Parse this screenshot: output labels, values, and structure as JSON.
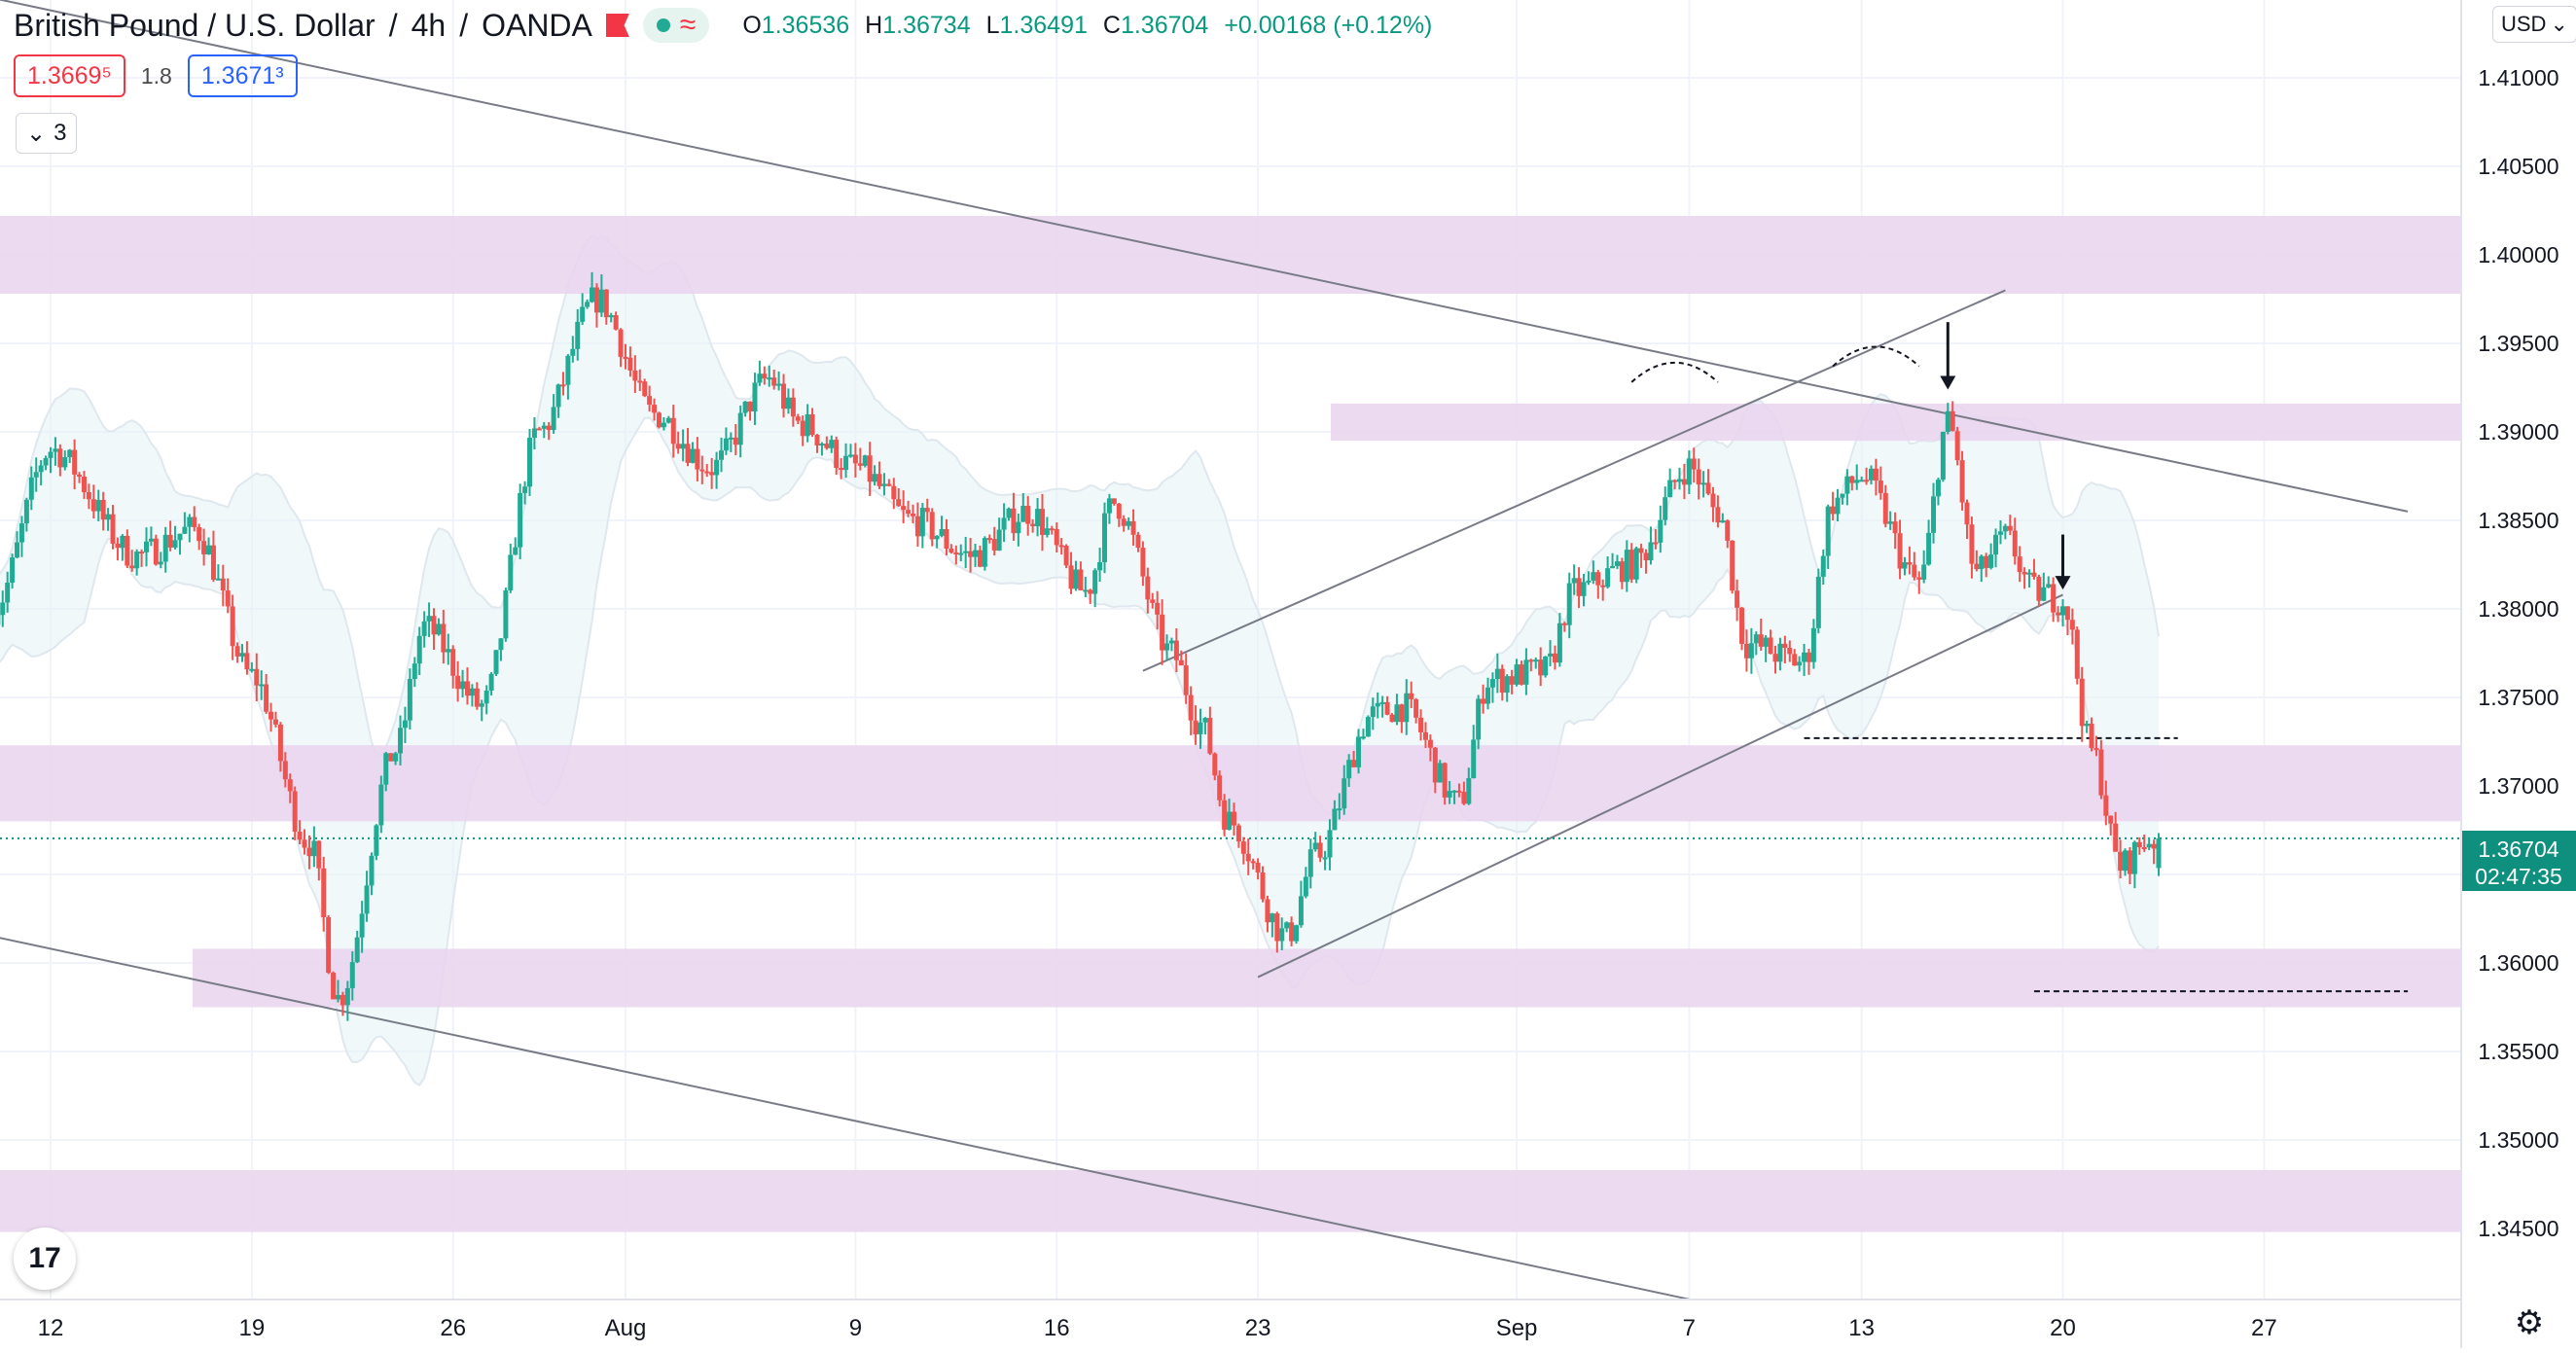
{
  "header": {
    "symbol": "British Pound / U.S. Dollar",
    "interval": "4h",
    "broker": "OANDA",
    "wave_icon": "≈",
    "open_label": "O",
    "open": "1.36536",
    "high_label": "H",
    "high": "1.36734",
    "low_label": "L",
    "low": "1.36491",
    "close_label": "C",
    "close": "1.36704",
    "change": "+0.00168 (+0.12%)"
  },
  "trade": {
    "sell": "1.3669⁵",
    "spread": "1.8",
    "buy": "1.3671³"
  },
  "indicators": {
    "collapse_label": "3"
  },
  "currency": {
    "label": "USD"
  },
  "colors": {
    "up": "#22ab94",
    "down": "#ef5350",
    "zone": "#e9d3ef",
    "band_fill": "#e3f2f6",
    "label_bg": "#0f8f7e",
    "accent": "#2962ff"
  },
  "chart_data": {
    "type": "candlestick",
    "symbol": "GBPUSD",
    "interval": "4h",
    "ylim": [
      1.341,
      1.4195
    ],
    "y_ticks": [
      "1.41000",
      "1.40500",
      "1.40000",
      "1.39500",
      "1.39000",
      "1.38500",
      "1.38000",
      "1.37500",
      "1.37000",
      "1.36500",
      "1.36000",
      "1.35500",
      "1.35000",
      "1.34500"
    ],
    "x_ticks": [
      "12",
      "19",
      "26",
      "Aug",
      "9",
      "16",
      "23",
      "Sep",
      "7",
      "13",
      "20",
      "27"
    ],
    "last_price": "1.36704",
    "countdown": "02:47:35",
    "zones": [
      {
        "low": 1.3978,
        "high": 1.4022
      },
      {
        "low": 1.3895,
        "high": 1.3916
      },
      {
        "low": 1.368,
        "high": 1.3723
      },
      {
        "low": 1.3575,
        "high": 1.3608
      },
      {
        "low": 1.3448,
        "high": 1.3483
      }
    ],
    "anchors": [
      {
        "date": "Jul 9",
        "price": 1.38
      },
      {
        "date": "Jul 11",
        "price": 1.389
      },
      {
        "date": "Jul 14",
        "price": 1.383
      },
      {
        "date": "Jul 16",
        "price": 1.3845
      },
      {
        "date": "Jul 18",
        "price": 1.3762
      },
      {
        "date": "Jul 20",
        "price": 1.3668
      },
      {
        "date": "Jul 21",
        "price": 1.358
      },
      {
        "date": "Jul 23",
        "price": 1.372
      },
      {
        "date": "Jul 24",
        "price": 1.379
      },
      {
        "date": "Jul 26",
        "price": 1.3745
      },
      {
        "date": "Jul 28",
        "price": 1.39
      },
      {
        "date": "Jul 30",
        "price": 1.3975
      },
      {
        "date": "Aug 1",
        "price": 1.391
      },
      {
        "date": "Aug 3",
        "price": 1.388
      },
      {
        "date": "Aug 5",
        "price": 1.393
      },
      {
        "date": "Aug 6",
        "price": 1.3905
      },
      {
        "date": "Aug 8",
        "price": 1.388
      },
      {
        "date": "Aug 10",
        "price": 1.385
      },
      {
        "date": "Aug 12",
        "price": 1.383
      },
      {
        "date": "Aug 14",
        "price": 1.3855
      },
      {
        "date": "Aug 16",
        "price": 1.381
      },
      {
        "date": "Aug 17",
        "price": 1.386
      },
      {
        "date": "Aug 19",
        "price": 1.3775
      },
      {
        "date": "Aug 20",
        "price": 1.3735
      },
      {
        "date": "Aug 21",
        "price": 1.368
      },
      {
        "date": "Aug 23",
        "price": 1.3615
      },
      {
        "date": "Aug 24",
        "price": 1.366
      },
      {
        "date": "Aug 26",
        "price": 1.374
      },
      {
        "date": "Aug 27",
        "price": 1.3745
      },
      {
        "date": "Aug 29",
        "price": 1.369
      },
      {
        "date": "Aug 30",
        "price": 1.376
      },
      {
        "date": "Sep 1",
        "price": 1.3765
      },
      {
        "date": "Sep 2",
        "price": 1.381
      },
      {
        "date": "Sep 4",
        "price": 1.3825
      },
      {
        "date": "Sep 6",
        "price": 1.388
      },
      {
        "date": "Sep 7",
        "price": 1.3855
      },
      {
        "date": "Sep 8",
        "price": 1.378
      },
      {
        "date": "Sep 10",
        "price": 1.377
      },
      {
        "date": "Sep 11",
        "price": 1.386
      },
      {
        "date": "Sep 12",
        "price": 1.3875
      },
      {
        "date": "Sep 14",
        "price": 1.3815
      },
      {
        "date": "Sep 15",
        "price": 1.3905
      },
      {
        "date": "Sep 16",
        "price": 1.382
      },
      {
        "date": "Sep 17",
        "price": 1.384
      },
      {
        "date": "Sep 18",
        "price": 1.381
      },
      {
        "date": "Sep 19",
        "price": 1.3805
      },
      {
        "date": "Sep 20",
        "price": 1.372
      },
      {
        "date": "Sep 21",
        "price": 1.3655
      },
      {
        "date": "Sep 22",
        "price": 1.367
      }
    ],
    "trendlines": [
      {
        "name": "descending-upper",
        "from": {
          "date": "Jul 9",
          "price": 1.4145
        },
        "to": {
          "date": "Oct 1",
          "price": 1.3855
        }
      },
      {
        "name": "descending-lower",
        "from": {
          "date": "Jul 9",
          "price": 1.3615
        },
        "to": {
          "date": "Sep 6",
          "price": 1.341
        }
      },
      {
        "name": "channel-upper",
        "from": {
          "date": "Aug 18",
          "price": 1.3765
        },
        "to": {
          "date": "Sep 17",
          "price": 1.398
        }
      },
      {
        "name": "channel-lower",
        "from": {
          "date": "Aug 22",
          "price": 1.3592
        },
        "to": {
          "date": "Sep 19",
          "price": 1.3808
        }
      }
    ],
    "levels": [
      {
        "name": "neckline",
        "price": 1.3727,
        "from": "Sep 10",
        "to": "Sep 23"
      },
      {
        "name": "target",
        "price": 1.3584,
        "from": "Sep 18",
        "to": "Oct 1"
      }
    ],
    "arrows": [
      {
        "date": "Sep 15",
        "from_price": 1.3962,
        "to_price": 1.3925
      },
      {
        "date": "Sep 19",
        "from_price": 1.3842,
        "to_price": 1.3812
      }
    ],
    "arcs": [
      {
        "from": "Sep 4",
        "to": "Sep 7",
        "price": 1.3938
      },
      {
        "from": "Sep 11",
        "to": "Sep 14",
        "price": 1.3947
      }
    ]
  }
}
